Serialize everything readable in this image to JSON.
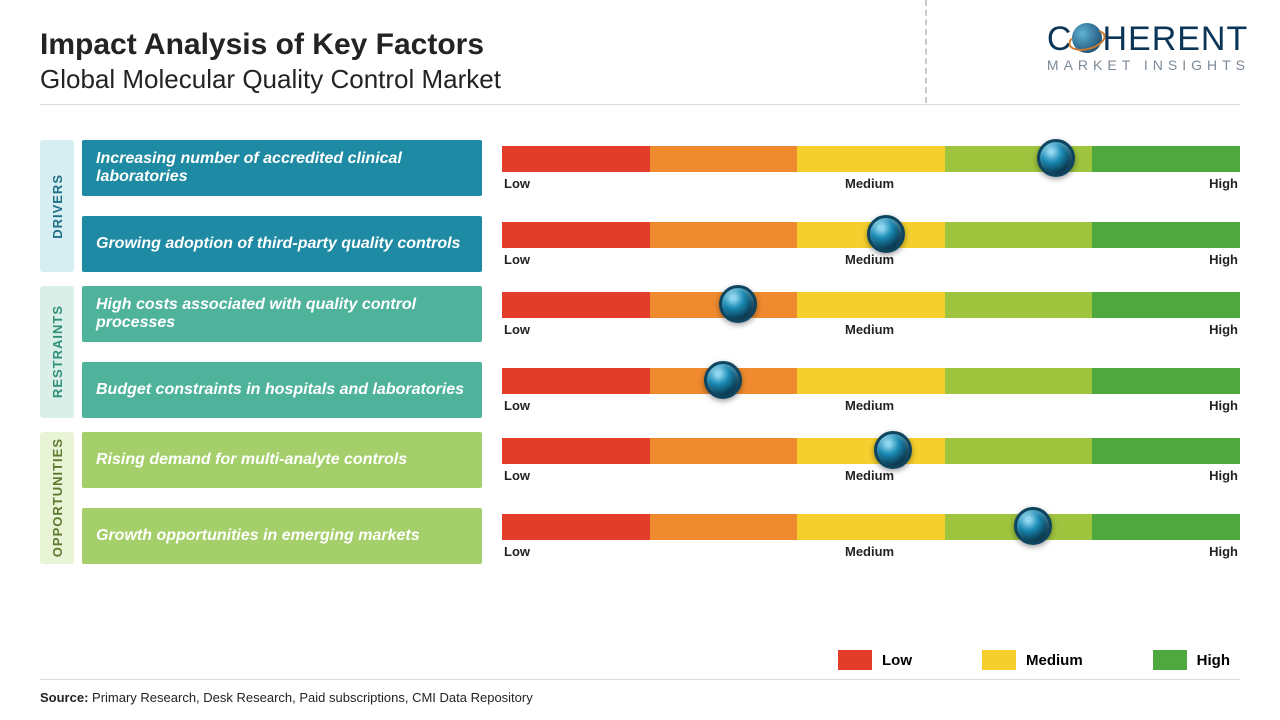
{
  "header": {
    "title": "Impact Analysis of Key Factors",
    "subtitle": "Global Molecular Quality Control Market"
  },
  "logo": {
    "main_pre": "C",
    "main_post": "HERENT",
    "sub": "MARKET INSIGHTS"
  },
  "gauge": {
    "segment_colors": [
      "#e23c2a",
      "#ef8b2e",
      "#f4cf2d",
      "#9fc43e",
      "#4ea83e"
    ],
    "scale_labels": {
      "low": "Low",
      "medium": "Medium",
      "high": "High"
    }
  },
  "categories": [
    {
      "name": "DRIVERS",
      "tab_bg": "#d6edf2",
      "tab_text_color": "#1f6f86",
      "factor_bg": "#1f8aa3",
      "items": [
        {
          "text": "Increasing number of accredited clinical laboratories",
          "value_pct": 75
        },
        {
          "text": "Growing adoption of third-party quality controls",
          "value_pct": 52
        }
      ]
    },
    {
      "name": "RESTRAINTS",
      "tab_bg": "#d9efe8",
      "tab_text_color": "#2f8f79",
      "factor_bg": "#4fb39c",
      "items": [
        {
          "text": "High costs associated with quality control processes",
          "value_pct": 32
        },
        {
          "text": "Budget constraints in hospitals and laboratories",
          "value_pct": 30
        }
      ]
    },
    {
      "name": "OPPORTUNITIES",
      "tab_bg": "#e9f3d5",
      "tab_text_color": "#5c7a2f",
      "factor_bg": "#a5cf6b",
      "items": [
        {
          "text": "Rising demand for multi-analyte controls",
          "value_pct": 53
        },
        {
          "text": "Growth opportunities in emerging markets",
          "value_pct": 72
        }
      ]
    }
  ],
  "legend": {
    "items": [
      {
        "label": "Low",
        "color": "#e23c2a"
      },
      {
        "label": "Medium",
        "color": "#f4cf2d"
      },
      {
        "label": "High",
        "color": "#4ea83e"
      }
    ]
  },
  "source": {
    "label": "Source:",
    "text": " Primary Research, Desk Research, Paid subscriptions, CMI Data Repository"
  }
}
